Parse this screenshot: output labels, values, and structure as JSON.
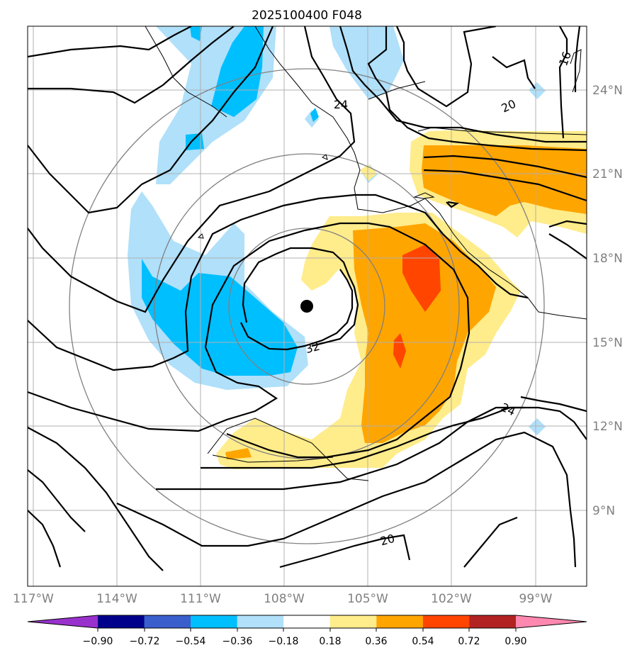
{
  "title": "2025100400 F048",
  "map": {
    "lon_labels": [
      "117°W",
      "114°W",
      "111°W",
      "108°W",
      "105°W",
      "102°W",
      "99°W"
    ],
    "lat_labels": [
      "24°N",
      "21°N",
      "18°N",
      "15°N",
      "12°N",
      "9°N"
    ],
    "contour_labels": [
      "24",
      "20",
      "16",
      "32",
      "24",
      "20"
    ],
    "storm_center_color": "#000000"
  },
  "colorbar": {
    "tick_labels": [
      "−0.90",
      "−0.72",
      "−0.54",
      "−0.36",
      "−0.18",
      "0.18",
      "0.36",
      "0.54",
      "0.72",
      "0.90"
    ],
    "colors": [
      "#9932cc",
      "#00008b",
      "#3a5fcd",
      "#00bfff",
      "#b0e0fa",
      "#ffffff",
      "#ffec8b",
      "#ffa500",
      "#ff4500",
      "#b22222",
      "#ff88b0"
    ]
  },
  "chart_data": {
    "type": "heatmap",
    "title": "2025100400 F048",
    "xlim": [
      -117,
      -97
    ],
    "ylim": [
      7,
      27
    ],
    "x_ticks": [
      -117,
      -114,
      -111,
      -108,
      -105,
      -102,
      -99
    ],
    "y_ticks": [
      9,
      12,
      15,
      18,
      21,
      24
    ],
    "storm_center": {
      "lon": -107.1,
      "lat": 16.3
    },
    "color_levels": [
      -0.9,
      -0.72,
      -0.54,
      -0.36,
      -0.18,
      0.18,
      0.36,
      0.54,
      0.72,
      0.9
    ],
    "contour_labels": [
      24,
      20,
      16,
      32,
      24,
      20
    ],
    "grid": true
  }
}
